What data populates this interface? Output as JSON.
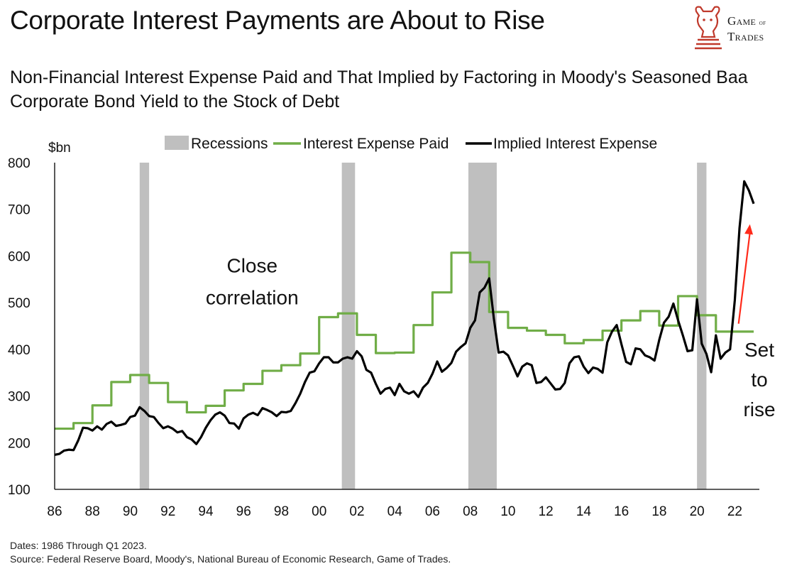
{
  "header": {
    "title": "Corporate Interest Payments are About to Rise",
    "subtitle": "Non-Financial Interest Expense Paid and That Implied by Factoring in Moody's Seasoned Baa Corporate Bond Yield to the Stock of Debt"
  },
  "logo": {
    "line1": "Game",
    "line2": "of",
    "line3": "Trades",
    "icon": "bull-chess-knight-icon"
  },
  "footer": {
    "dates": "Dates: 1986 Through Q1 2023.",
    "source": "Source: Federal Reserve Board, Moody's, National Bureau of Economic Research, Game of Trades."
  },
  "colors": {
    "green": "#70ad47",
    "black": "#000000",
    "recession": "#bfbfbf",
    "arrow": "#ff2a1a"
  },
  "chart_data": {
    "type": "line",
    "ylabel": "$bn",
    "ylim": [
      100,
      800
    ],
    "xlim": [
      1986,
      2023.3
    ],
    "y_ticks": [
      "100",
      "200",
      "300",
      "400",
      "500",
      "600",
      "700",
      "800"
    ],
    "x_ticks": [
      "86",
      "88",
      "90",
      "92",
      "94",
      "96",
      "98",
      "00",
      "02",
      "04",
      "06",
      "08",
      "10",
      "12",
      "14",
      "16",
      "18",
      "20",
      "22"
    ],
    "legend": {
      "recessions": "Recessions",
      "paid": "Interest Expense Paid",
      "implied": "Implied Interest Expense"
    },
    "recessions": [
      [
        1990.5,
        1991.0
      ],
      [
        2001.2,
        2001.9
      ],
      [
        2007.9,
        2009.4
      ],
      [
        2020.0,
        2020.5
      ]
    ],
    "annotations": [
      {
        "lines": [
          "Close",
          "correlation"
        ],
        "near_year": 1994.5,
        "near_value": 580
      },
      {
        "lines": [
          "Set",
          "to",
          "rise"
        ],
        "near_year": 2022.8,
        "near_value": 400
      }
    ],
    "arrow": {
      "from": [
        2022.2,
        455
      ],
      "to": [
        2022.8,
        668
      ]
    },
    "series": [
      {
        "name": "Interest Expense Paid",
        "color": "#70ad47",
        "step": true,
        "points": [
          [
            1986,
            230
          ],
          [
            1986.75,
            230
          ],
          [
            1987,
            242
          ],
          [
            1987.75,
            242
          ],
          [
            1988,
            280
          ],
          [
            1988.75,
            280
          ],
          [
            1989,
            330
          ],
          [
            1989.75,
            330
          ],
          [
            1990,
            345
          ],
          [
            1990.75,
            345
          ],
          [
            1991,
            328
          ],
          [
            1991.75,
            328
          ],
          [
            1992,
            287
          ],
          [
            1992.75,
            287
          ],
          [
            1993,
            265
          ],
          [
            1993.75,
            265
          ],
          [
            1994,
            279
          ],
          [
            1994.75,
            279
          ],
          [
            1995,
            312
          ],
          [
            1995.75,
            312
          ],
          [
            1996,
            326
          ],
          [
            1996.75,
            326
          ],
          [
            1997,
            354
          ],
          [
            1997.75,
            354
          ],
          [
            1998,
            366
          ],
          [
            1998.75,
            366
          ],
          [
            1999,
            391
          ],
          [
            1999.75,
            391
          ],
          [
            2000,
            469
          ],
          [
            2000.75,
            469
          ],
          [
            2001,
            477
          ],
          [
            2001.75,
            477
          ],
          [
            2002,
            431
          ],
          [
            2002.75,
            431
          ],
          [
            2003,
            392
          ],
          [
            2003.75,
            392
          ],
          [
            2004,
            393
          ],
          [
            2004.75,
            393
          ],
          [
            2005,
            452
          ],
          [
            2005.75,
            452
          ],
          [
            2006,
            522
          ],
          [
            2006.75,
            522
          ],
          [
            2007,
            607
          ],
          [
            2007.75,
            607
          ],
          [
            2008,
            587
          ],
          [
            2008.75,
            587
          ],
          [
            2009,
            480
          ],
          [
            2009.75,
            480
          ],
          [
            2010,
            446
          ],
          [
            2010.75,
            446
          ],
          [
            2011,
            440
          ],
          [
            2011.75,
            440
          ],
          [
            2012,
            431
          ],
          [
            2012.75,
            431
          ],
          [
            2013,
            413
          ],
          [
            2013.75,
            413
          ],
          [
            2014,
            420
          ],
          [
            2014.75,
            420
          ],
          [
            2015,
            440
          ],
          [
            2015.75,
            440
          ],
          [
            2016,
            462
          ],
          [
            2016.75,
            462
          ],
          [
            2017,
            482
          ],
          [
            2017.75,
            482
          ],
          [
            2018,
            451
          ],
          [
            2018.75,
            451
          ],
          [
            2019,
            514
          ],
          [
            2019.75,
            514
          ],
          [
            2020,
            473
          ],
          [
            2020.75,
            473
          ],
          [
            2021,
            438
          ],
          [
            2021.75,
            438
          ],
          [
            2022,
            438
          ],
          [
            2022.75,
            438
          ],
          [
            2023,
            438
          ]
        ]
      },
      {
        "name": "Implied Interest Expense",
        "color": "#000000",
        "step": false,
        "points": [
          [
            1986,
            174
          ],
          [
            1986.25,
            176
          ],
          [
            1986.5,
            183
          ],
          [
            1986.75,
            185
          ],
          [
            1987,
            184
          ],
          [
            1987.25,
            205
          ],
          [
            1987.5,
            232
          ],
          [
            1987.75,
            231
          ],
          [
            1988,
            226
          ],
          [
            1988.25,
            235
          ],
          [
            1988.5,
            228
          ],
          [
            1988.75,
            240
          ],
          [
            1989,
            245
          ],
          [
            1989.25,
            236
          ],
          [
            1989.5,
            238
          ],
          [
            1989.75,
            241
          ],
          [
            1990,
            255
          ],
          [
            1990.25,
            258
          ],
          [
            1990.5,
            276
          ],
          [
            1990.75,
            268
          ],
          [
            1991,
            257
          ],
          [
            1991.25,
            255
          ],
          [
            1991.5,
            242
          ],
          [
            1991.75,
            231
          ],
          [
            1992,
            235
          ],
          [
            1992.25,
            230
          ],
          [
            1992.5,
            222
          ],
          [
            1992.75,
            225
          ],
          [
            1993,
            212
          ],
          [
            1993.25,
            207
          ],
          [
            1993.5,
            197
          ],
          [
            1993.75,
            212
          ],
          [
            1994,
            232
          ],
          [
            1994.25,
            248
          ],
          [
            1994.5,
            260
          ],
          [
            1994.75,
            265
          ],
          [
            1995,
            258
          ],
          [
            1995.25,
            242
          ],
          [
            1995.5,
            241
          ],
          [
            1995.75,
            230
          ],
          [
            1996,
            252
          ],
          [
            1996.25,
            260
          ],
          [
            1996.5,
            264
          ],
          [
            1996.75,
            259
          ],
          [
            1997,
            274
          ],
          [
            1997.25,
            270
          ],
          [
            1997.5,
            265
          ],
          [
            1997.75,
            257
          ],
          [
            1998,
            266
          ],
          [
            1998.25,
            265
          ],
          [
            1998.5,
            268
          ],
          [
            1998.75,
            285
          ],
          [
            1999,
            305
          ],
          [
            1999.25,
            330
          ],
          [
            1999.5,
            350
          ],
          [
            1999.75,
            353
          ],
          [
            2000,
            370
          ],
          [
            2000.25,
            383
          ],
          [
            2000.5,
            383
          ],
          [
            2000.75,
            372
          ],
          [
            2001,
            372
          ],
          [
            2001.25,
            380
          ],
          [
            2001.5,
            383
          ],
          [
            2001.75,
            380
          ],
          [
            2002,
            396
          ],
          [
            2002.25,
            385
          ],
          [
            2002.5,
            356
          ],
          [
            2002.75,
            350
          ],
          [
            2003,
            326
          ],
          [
            2003.25,
            305
          ],
          [
            2003.5,
            315
          ],
          [
            2003.75,
            318
          ],
          [
            2004,
            302
          ],
          [
            2004.25,
            326
          ],
          [
            2004.5,
            310
          ],
          [
            2004.75,
            305
          ],
          [
            2005,
            310
          ],
          [
            2005.25,
            298
          ],
          [
            2005.5,
            318
          ],
          [
            2005.75,
            328
          ],
          [
            2006,
            348
          ],
          [
            2006.25,
            374
          ],
          [
            2006.5,
            352
          ],
          [
            2006.75,
            360
          ],
          [
            2007,
            371
          ],
          [
            2007.25,
            395
          ],
          [
            2007.5,
            405
          ],
          [
            2007.75,
            413
          ],
          [
            2008,
            446
          ],
          [
            2008.25,
            462
          ],
          [
            2008.5,
            522
          ],
          [
            2008.75,
            532
          ],
          [
            2009,
            552
          ],
          [
            2009.25,
            465
          ],
          [
            2009.5,
            393
          ],
          [
            2009.75,
            395
          ],
          [
            2010,
            387
          ],
          [
            2010.25,
            365
          ],
          [
            2010.5,
            342
          ],
          [
            2010.75,
            363
          ],
          [
            2011,
            370
          ],
          [
            2011.25,
            366
          ],
          [
            2011.5,
            328
          ],
          [
            2011.75,
            330
          ],
          [
            2012,
            340
          ],
          [
            2012.25,
            327
          ],
          [
            2012.5,
            314
          ],
          [
            2012.75,
            315
          ],
          [
            2013,
            328
          ],
          [
            2013.25,
            370
          ],
          [
            2013.5,
            383
          ],
          [
            2013.75,
            385
          ],
          [
            2014,
            363
          ],
          [
            2014.25,
            349
          ],
          [
            2014.5,
            361
          ],
          [
            2014.75,
            358
          ],
          [
            2015,
            350
          ],
          [
            2015.25,
            415
          ],
          [
            2015.5,
            438
          ],
          [
            2015.75,
            452
          ],
          [
            2016,
            411
          ],
          [
            2016.25,
            373
          ],
          [
            2016.5,
            368
          ],
          [
            2016.75,
            402
          ],
          [
            2017,
            400
          ],
          [
            2017.25,
            387
          ],
          [
            2017.5,
            383
          ],
          [
            2017.75,
            376
          ],
          [
            2018,
            420
          ],
          [
            2018.25,
            457
          ],
          [
            2018.5,
            470
          ],
          [
            2018.75,
            498
          ],
          [
            2019,
            462
          ],
          [
            2019.25,
            430
          ],
          [
            2019.5,
            396
          ],
          [
            2019.75,
            398
          ],
          [
            2020,
            507
          ],
          [
            2020.25,
            412
          ],
          [
            2020.5,
            390
          ],
          [
            2020.75,
            351
          ],
          [
            2021,
            430
          ],
          [
            2021.25,
            380
          ],
          [
            2021.5,
            393
          ],
          [
            2021.75,
            400
          ],
          [
            2022,
            505
          ],
          [
            2022.25,
            660
          ],
          [
            2022.5,
            760
          ],
          [
            2022.75,
            740
          ],
          [
            2023,
            712
          ]
        ]
      }
    ]
  }
}
